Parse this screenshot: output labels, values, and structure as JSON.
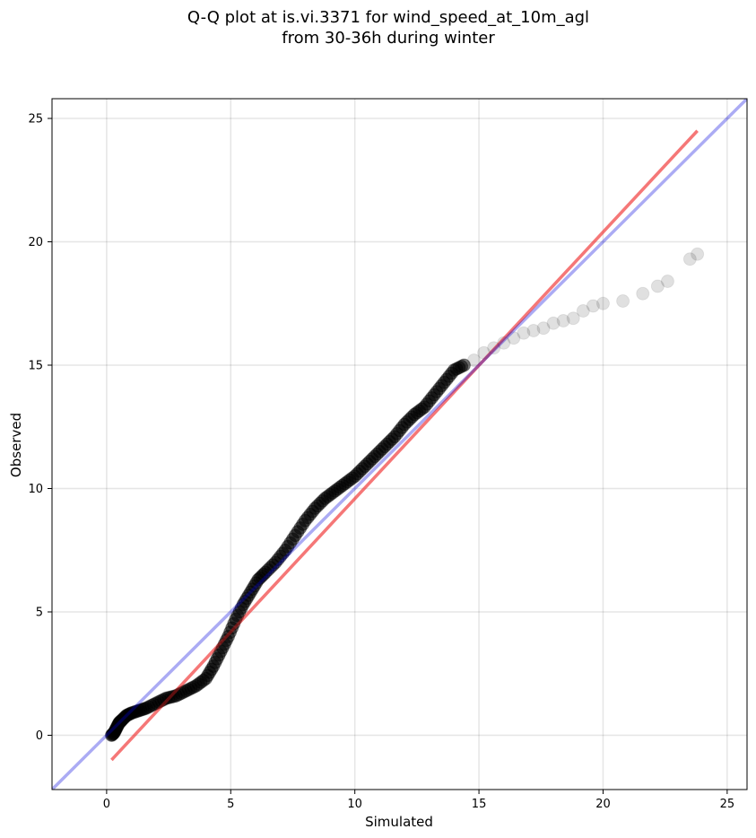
{
  "chart_data": {
    "type": "scatter",
    "title_lines": [
      "Q-Q plot at is.vi.3371 for wind_speed_at_10m_agl",
      "from 30-36h during winter"
    ],
    "xlabel": "Simulated",
    "ylabel": "Observed",
    "xlim": [
      -2.2,
      25.8
    ],
    "ylim": [
      -2.2,
      25.8
    ],
    "x_ticks": [
      0,
      5,
      10,
      15,
      20,
      25
    ],
    "y_ticks": [
      0,
      5,
      10,
      15,
      20,
      25
    ],
    "grid": true,
    "colors": {
      "points": "#000000",
      "reference_line": "#0000dd",
      "fit_line": "#ee2222"
    },
    "reference_line": {
      "name": "1:1 line",
      "slope": 1,
      "intercept": 0
    },
    "fit_line": {
      "x": [
        0.2,
        23.8
      ],
      "y": [
        -1.0,
        24.5
      ]
    },
    "points": {
      "x": [
        0.2,
        0.3,
        0.4,
        0.5,
        0.6,
        0.8,
        1.0,
        1.3,
        1.6,
        2.0,
        2.4,
        2.8,
        3.2,
        3.6,
        4.0,
        4.3,
        4.6,
        4.9,
        5.2,
        5.5,
        5.8,
        6.1,
        6.4,
        6.8,
        7.2,
        7.6,
        8.0,
        8.4,
        8.8,
        9.2,
        9.6,
        10.0,
        10.4,
        10.8,
        11.2,
        11.6,
        12.0,
        12.4,
        12.8,
        13.2,
        13.6,
        14.0,
        14.4,
        14.8,
        15.2,
        15.6,
        16.0,
        16.4,
        16.8,
        17.2,
        17.6,
        18.0,
        18.4,
        18.8,
        19.2,
        19.6,
        20.0,
        20.8,
        21.6,
        22.2,
        22.6,
        23.5,
        23.8
      ],
      "y": [
        0.0,
        0.1,
        0.3,
        0.5,
        0.6,
        0.8,
        0.9,
        1.0,
        1.1,
        1.3,
        1.5,
        1.6,
        1.8,
        2.0,
        2.3,
        2.8,
        3.4,
        4.0,
        4.7,
        5.3,
        5.8,
        6.3,
        6.6,
        7.0,
        7.5,
        8.1,
        8.7,
        9.2,
        9.6,
        9.9,
        10.2,
        10.5,
        10.9,
        11.3,
        11.7,
        12.1,
        12.6,
        13.0,
        13.3,
        13.8,
        14.3,
        14.8,
        15.0,
        15.2,
        15.5,
        15.7,
        15.9,
        16.1,
        16.3,
        16.4,
        16.5,
        16.7,
        16.8,
        16.9,
        17.2,
        17.4,
        17.5,
        17.6,
        17.9,
        18.2,
        18.4,
        19.3,
        19.5
      ]
    }
  }
}
